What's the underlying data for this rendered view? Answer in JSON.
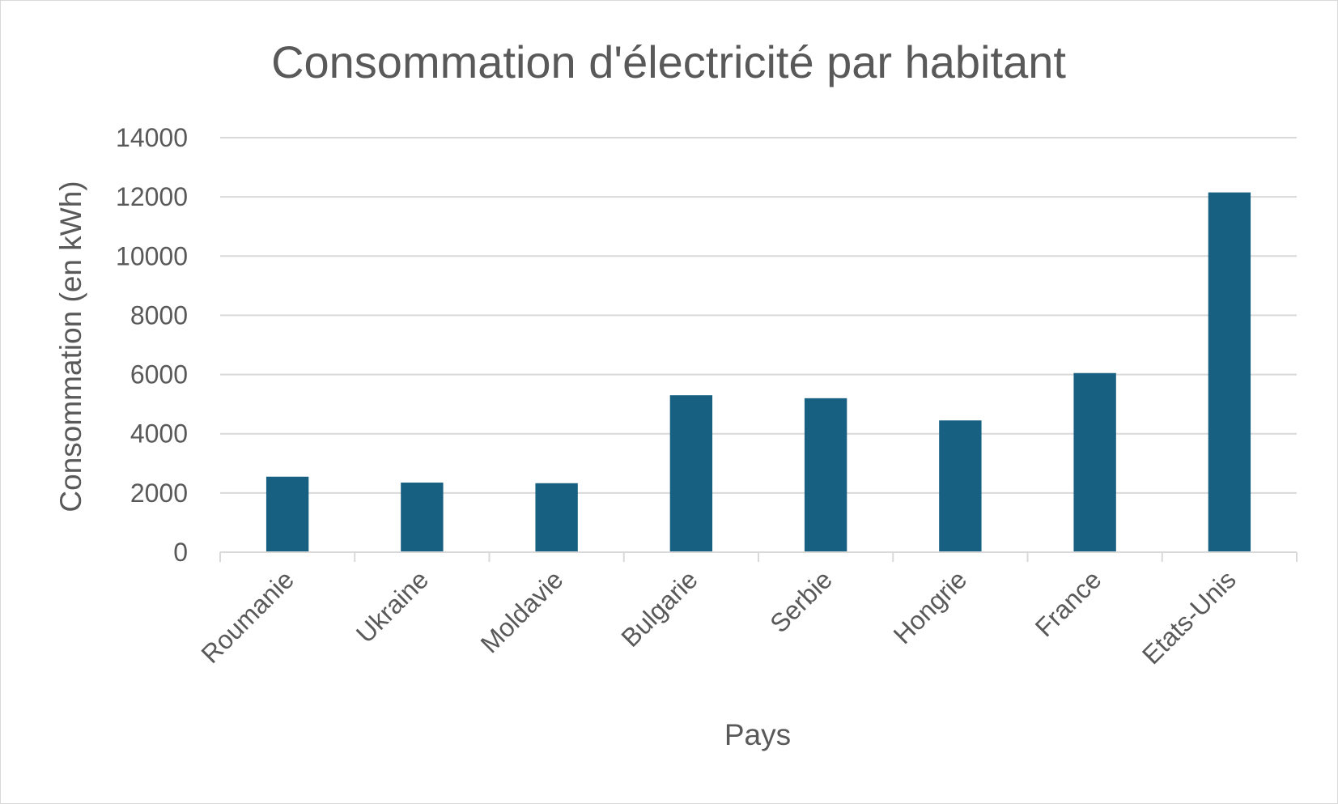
{
  "chart_data": {
    "type": "bar",
    "title": "Consommation d'électricité par habitant",
    "xlabel": "Pays",
    "ylabel": "Consommation (en kWh)",
    "categories": [
      "Roumanie",
      "Ukraine",
      "Moldavie",
      "Bulgarie",
      "Serbie",
      "Hongrie",
      "France",
      "Etats-Unis"
    ],
    "values": [
      2550,
      2350,
      2330,
      5300,
      5200,
      4450,
      6050,
      12150
    ],
    "ylim": [
      0,
      14000
    ],
    "yticks": [
      "0",
      "2000",
      "4000",
      "6000",
      "8000",
      "10000",
      "12000",
      "14000"
    ],
    "grid": true,
    "legend": "none",
    "colors": {
      "bar": "#176082",
      "grid": "#d9d9d9",
      "text": "#595959"
    }
  }
}
